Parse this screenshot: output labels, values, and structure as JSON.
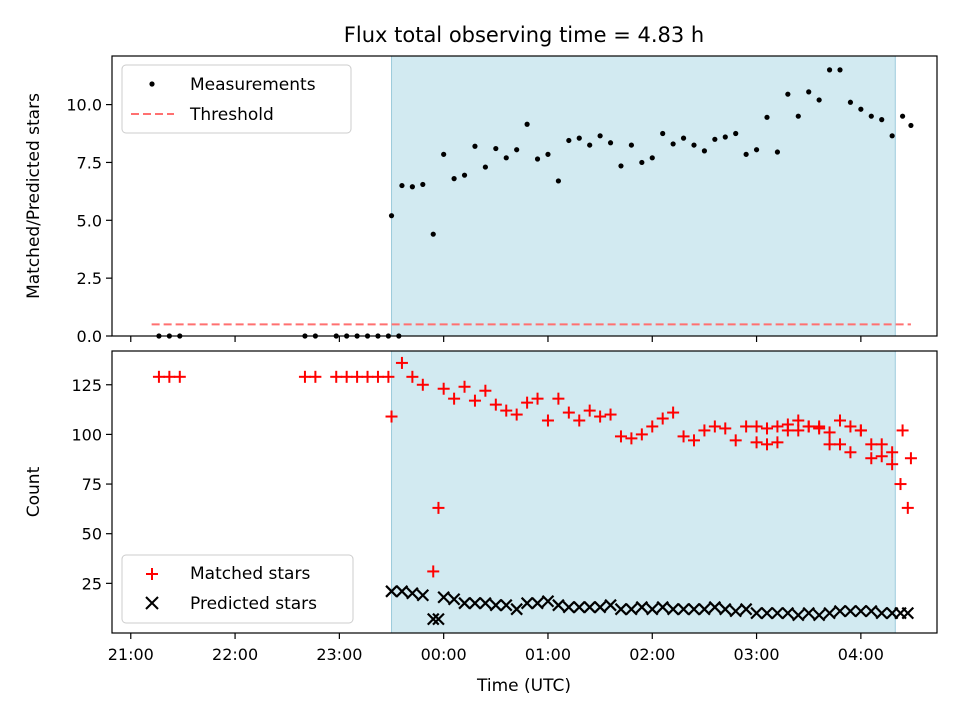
{
  "chart_data": [
    {
      "type": "scatter",
      "title": "Flux total observing time = 4.83 h",
      "xlabel": "",
      "ylabel": "Matched/Predicted stars",
      "xlim": [
        -0.18,
        7.73
      ],
      "ylim": [
        0,
        12.1
      ],
      "yticks": [
        0,
        2.5,
        5,
        7.5,
        10
      ],
      "ytick_labels": [
        "0.0",
        "2.5",
        "5.0",
        "7.5",
        "10.0"
      ],
      "observing_window_hours": [
        2.5,
        7.33
      ],
      "legend_position": "upper-left",
      "series": [
        {
          "name": "Measurements",
          "x": [
            0.27,
            0.37,
            0.47,
            1.67,
            1.77,
            1.97,
            2.07,
            2.17,
            2.27,
            2.37,
            2.47,
            2.57,
            2.5,
            2.6,
            2.7,
            2.8,
            2.9,
            3.0,
            3.1,
            3.2,
            3.3,
            3.4,
            3.5,
            3.6,
            3.7,
            3.8,
            3.9,
            4.0,
            4.1,
            4.2,
            4.3,
            4.4,
            4.5,
            4.6,
            4.7,
            4.8,
            4.9,
            5.0,
            5.1,
            5.2,
            5.3,
            5.4,
            5.5,
            5.6,
            5.7,
            5.8,
            5.9,
            6.0,
            6.1,
            6.2,
            6.3,
            6.4,
            6.5,
            6.6,
            6.7,
            6.8,
            6.9,
            7.0,
            7.1,
            7.2,
            7.3,
            7.4,
            7.48
          ],
          "y": [
            0,
            0,
            0,
            0,
            0,
            0,
            0,
            0,
            0,
            0,
            0,
            0,
            5.2,
            6.5,
            6.45,
            6.55,
            4.4,
            7.85,
            6.8,
            6.95,
            8.2,
            7.3,
            8.1,
            7.7,
            8.05,
            9.15,
            7.65,
            7.85,
            6.7,
            8.45,
            8.55,
            8.25,
            8.65,
            8.35,
            7.35,
            8.25,
            7.5,
            7.7,
            8.75,
            8.3,
            8.55,
            8.25,
            8.0,
            8.5,
            8.6,
            8.75,
            7.85,
            8.05,
            9.45,
            7.95,
            10.45,
            9.5,
            10.55,
            10.2,
            11.5,
            11.5,
            10.1,
            9.8,
            9.5,
            9.35,
            8.65,
            9.5,
            9.1
          ]
        },
        {
          "name": "Threshold",
          "x": [
            0.2,
            7.48
          ],
          "y": [
            0.5,
            0.5
          ]
        }
      ]
    },
    {
      "type": "scatter",
      "title": "",
      "xlabel": "Time (UTC)",
      "ylabel": "Count",
      "xlim": [
        -0.18,
        7.73
      ],
      "ylim": [
        0,
        142
      ],
      "xticks": [
        0,
        1,
        2,
        3,
        4,
        5,
        6,
        7
      ],
      "xtick_labels": [
        "21:00",
        "22:00",
        "23:00",
        "00:00",
        "01:00",
        "02:00",
        "03:00",
        "04:00"
      ],
      "yticks": [
        25,
        50,
        75,
        100,
        125
      ],
      "ytick_labels": [
        "25",
        "50",
        "75",
        "100",
        "125"
      ],
      "observing_window_hours": [
        2.5,
        7.33
      ],
      "legend_position": "lower-left",
      "series": [
        {
          "name": "Matched stars",
          "x": [
            0.27,
            0.37,
            0.47,
            1.67,
            1.77,
            1.97,
            2.07,
            2.17,
            2.27,
            2.37,
            2.47,
            2.5,
            2.6,
            2.7,
            2.8,
            2.9,
            2.95,
            3.0,
            3.1,
            3.2,
            3.3,
            3.4,
            3.5,
            3.6,
            3.7,
            3.8,
            3.9,
            4.0,
            4.1,
            4.2,
            4.3,
            4.4,
            4.5,
            4.6,
            4.7,
            4.8,
            4.9,
            5.0,
            5.1,
            5.2,
            5.3,
            5.4,
            5.5,
            5.6,
            5.7,
            5.8,
            5.9,
            6.0,
            6.1,
            6.2,
            6.3,
            6.4,
            6.5,
            6.6,
            6.7,
            6.8,
            6.9,
            7.0,
            7.1,
            7.2,
            7.3,
            7.4,
            7.48
          ],
          "y": [
            129,
            129,
            129,
            129,
            129,
            129,
            129,
            129,
            129,
            129,
            129,
            109,
            136,
            129,
            125,
            31,
            63,
            123,
            118,
            124,
            117,
            122,
            115,
            112,
            110,
            116,
            118,
            107,
            118,
            111,
            107,
            112,
            109,
            110,
            99,
            98,
            100,
            104,
            108,
            111,
            99,
            97,
            102,
            104,
            103,
            97,
            104,
            96,
            95,
            96,
            105,
            102,
            104,
            103,
            101,
            107,
            104,
            102,
            95,
            95,
            91,
            102,
            88
          ],
          "extra": {
            "x": [
              6.0,
              6.1,
              6.2,
              6.3,
              6.4,
              6.5,
              6.6,
              6.7,
              6.8,
              6.9,
              7.0,
              7.1,
              7.2,
              7.3,
              7.38,
              7.45
            ],
            "y": [
              104,
              103,
              104,
              102,
              107,
              104,
              104,
              95,
              95,
              91,
              102,
              88,
              89,
              85,
              75,
              63
            ]
          }
        },
        {
          "name": "Predicted stars",
          "x": [
            2.5,
            2.6,
            2.7,
            2.8,
            2.9,
            2.95,
            3.0,
            3.1,
            3.2,
            3.3,
            3.4,
            3.5,
            3.6,
            3.7,
            3.8,
            3.9,
            4.0,
            4.1,
            4.2,
            4.3,
            4.4,
            4.5,
            4.6,
            4.7,
            4.8,
            4.9,
            5.0,
            5.1,
            5.2,
            5.3,
            5.4,
            5.5,
            5.6,
            5.7,
            5.8,
            5.9,
            6.0,
            6.1,
            6.2,
            6.3,
            6.4,
            6.5,
            6.6,
            6.7,
            6.8,
            6.9,
            7.0,
            7.1,
            7.2,
            7.3,
            7.38,
            7.45
          ],
          "y": [
            21,
            21,
            20,
            19,
            7,
            7,
            18,
            17,
            15,
            15,
            15,
            14,
            14,
            12,
            15,
            15,
            16,
            14,
            13,
            13,
            13,
            13,
            14,
            12,
            12,
            13,
            12,
            13,
            12,
            12,
            12,
            12,
            13,
            12,
            11,
            12,
            10,
            10,
            10,
            10,
            9,
            10,
            9,
            10,
            11,
            11,
            11,
            11,
            10,
            10,
            10,
            10
          ]
        }
      ]
    }
  ],
  "legend_top": {
    "measurements": "Measurements",
    "threshold": "Threshold"
  },
  "legend_bottom": {
    "matched": "Matched stars",
    "predicted": "Predicted stars"
  },
  "colors": {
    "window_fill": "#add8e6",
    "measurements": "#000000",
    "threshold": "#ff7070",
    "matched": "#ff0000",
    "predicted": "#000000"
  }
}
